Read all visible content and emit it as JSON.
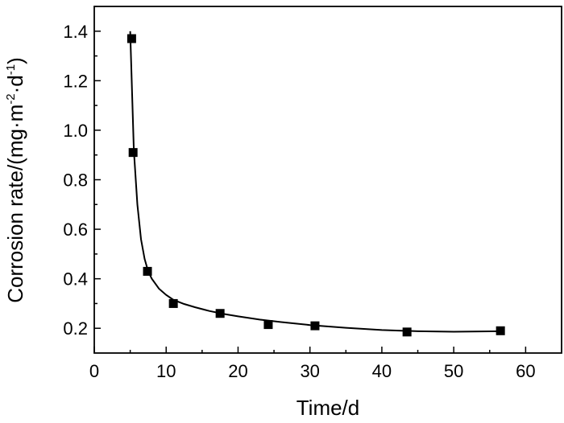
{
  "chart_data": {
    "type": "scatter",
    "title": "",
    "xlabel": "Time/d",
    "ylabel_parts": [
      "Corrosion rate/(mg·m",
      "-2",
      "d",
      "-1",
      ")"
    ],
    "xlim": [
      0,
      65
    ],
    "ylim": [
      0.1,
      1.5
    ],
    "xticks": [
      0,
      10,
      20,
      30,
      40,
      50,
      60
    ],
    "xtick_labels": [
      "0",
      "10",
      "20",
      "30",
      "40",
      "50",
      "60"
    ],
    "yticks": [
      0.2,
      0.4,
      0.6,
      0.8,
      1.0,
      1.2,
      1.4
    ],
    "ytick_labels": [
      "0.2",
      "0.4",
      "0.6",
      "0.8",
      "1.0",
      "1.2",
      "1.4"
    ],
    "grid": false,
    "legend": "none",
    "series": [
      {
        "marker": "square",
        "x": [
          5.2,
          5.4,
          7.4,
          11.0,
          17.5,
          24.2,
          30.7,
          43.5,
          56.5
        ],
        "y": [
          1.37,
          0.91,
          0.43,
          0.3,
          0.26,
          0.215,
          0.21,
          0.185,
          0.19
        ]
      }
    ],
    "fit_curve": {
      "x": [
        5.0,
        5.5,
        6.0,
        6.5,
        7.0,
        7.5,
        8.0,
        9.0,
        10.0,
        11.0,
        12.5,
        14.0,
        16.0,
        18.0,
        20.0,
        23.0,
        26.0,
        30.0,
        35.0,
        40.0,
        45.0,
        50.0,
        56.5
      ],
      "y": [
        1.4,
        0.92,
        0.7,
        0.56,
        0.48,
        0.43,
        0.4,
        0.36,
        0.335,
        0.315,
        0.298,
        0.285,
        0.27,
        0.258,
        0.248,
        0.235,
        0.225,
        0.213,
        0.202,
        0.193,
        0.188,
        0.186,
        0.188
      ]
    },
    "colors": {
      "marker": "#000000",
      "line": "#000000",
      "axis": "#000000"
    }
  }
}
